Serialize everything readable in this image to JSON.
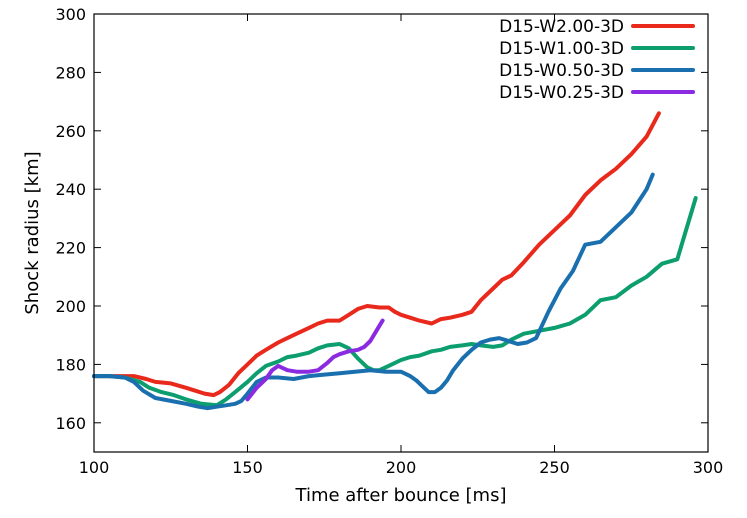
{
  "chart_data": {
    "type": "line",
    "title": "",
    "xlabel": "Time after bounce [ms]",
    "ylabel": "Shock radius [km]",
    "xlim": [
      100,
      300
    ],
    "ylim": [
      150,
      300
    ],
    "xticks": [
      100,
      150,
      200,
      250,
      300
    ],
    "yticks": [
      160,
      180,
      200,
      220,
      240,
      260,
      280,
      300
    ],
    "grid": false,
    "legend_position": "top-right",
    "series": [
      {
        "name": "D15-W2.00-3D",
        "color": "#e8291c",
        "x": [
          100,
          105,
          110,
          113,
          117,
          120,
          125,
          130,
          133,
          136,
          139,
          141,
          144,
          147,
          150,
          153,
          156,
          160,
          163,
          166,
          170,
          173,
          176,
          180,
          183,
          186,
          189,
          193,
          196,
          198,
          200,
          203,
          206,
          210,
          213,
          216,
          220,
          223,
          226,
          230,
          233,
          236,
          240,
          245,
          250,
          255,
          260,
          265,
          270,
          275,
          280,
          284
        ],
        "y": [
          176,
          176,
          176,
          176,
          175,
          174,
          173.5,
          172,
          171,
          170,
          169.5,
          170.5,
          173,
          177,
          180,
          183,
          185,
          187.5,
          189,
          190.5,
          192.5,
          194,
          195,
          195,
          197,
          199,
          200,
          199.5,
          199.5,
          198,
          197,
          196,
          195,
          194,
          195.5,
          196,
          197,
          198,
          202,
          206,
          209,
          210.5,
          215,
          221,
          226,
          231,
          238,
          243,
          247,
          252,
          258,
          266
        ]
      },
      {
        "name": "D15-W1.00-3D",
        "color": "#0c9e6e",
        "x": [
          100,
          105,
          110,
          115,
          118,
          122,
          126,
          130,
          135,
          140,
          143,
          146,
          150,
          153,
          156,
          160,
          163,
          166,
          170,
          173,
          176,
          180,
          183,
          186,
          189,
          191,
          193,
          197,
          200,
          203,
          206,
          210,
          213,
          216,
          220,
          223,
          226,
          230,
          233,
          236,
          240,
          245,
          250,
          255,
          260,
          265,
          270,
          275,
          280,
          285,
          290,
          296
        ],
        "y": [
          176,
          176,
          175.5,
          174,
          172,
          170.5,
          169.5,
          168,
          166.5,
          166,
          168,
          170.5,
          174,
          177,
          179.5,
          181,
          182.5,
          183,
          184,
          185.5,
          186.5,
          187,
          185.5,
          182,
          179,
          178,
          178,
          180,
          181.5,
          182.5,
          183,
          184.5,
          185,
          186,
          186.5,
          187,
          186.5,
          186,
          186.5,
          188.5,
          190.5,
          191.5,
          192.5,
          194,
          197,
          202,
          203,
          207,
          210,
          214.5,
          216,
          237
        ]
      },
      {
        "name": "D15-W0.50-3D",
        "color": "#1a6faf",
        "x": [
          100,
          105,
          110,
          113,
          116,
          120,
          125,
          130,
          134,
          137,
          140,
          143,
          146,
          148,
          150,
          153,
          156,
          160,
          165,
          170,
          175,
          180,
          185,
          190,
          195,
          200,
          203,
          205,
          207,
          209,
          211,
          213,
          215,
          217,
          220,
          223,
          226,
          229,
          232,
          235,
          238,
          241,
          244,
          248,
          252,
          256,
          260,
          265,
          270,
          275,
          280,
          282
        ],
        "y": [
          176,
          176,
          175.5,
          174,
          171,
          168.5,
          167.5,
          166.5,
          165.5,
          165,
          165.5,
          166,
          166.5,
          167.5,
          170,
          174,
          175.5,
          175.5,
          175,
          176,
          176.5,
          177,
          177.5,
          178,
          177.5,
          177.5,
          176,
          174.5,
          172.5,
          170.5,
          170.5,
          172,
          174.5,
          178,
          182,
          185,
          187.5,
          188.5,
          189,
          188,
          187,
          187.5,
          189,
          198,
          206,
          212,
          221,
          222,
          227,
          232,
          240,
          245
        ]
      },
      {
        "name": "D15-W0.25-3D",
        "color": "#8a2be2",
        "x": [
          150,
          153,
          156,
          158,
          160,
          163,
          166,
          170,
          173,
          176,
          178,
          180,
          183,
          186,
          188,
          190,
          192,
          194
        ],
        "y": [
          168,
          172,
          175,
          178,
          179.5,
          178,
          177.5,
          177.5,
          178,
          180.5,
          182.5,
          183.5,
          184.5,
          185,
          186,
          188,
          191.5,
          195
        ]
      }
    ]
  }
}
